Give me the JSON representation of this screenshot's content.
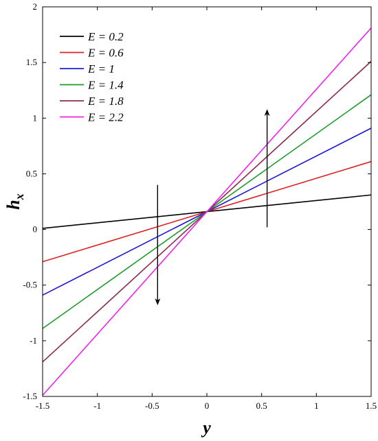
{
  "chart_data": {
    "type": "line",
    "xlabel": "y",
    "ylabel": {
      "main": "h",
      "sub": "x"
    },
    "xlim": [
      -1.5,
      1.5
    ],
    "ylim": [
      -1.5,
      2
    ],
    "xticks": [
      -1.5,
      -1,
      -0.5,
      0,
      0.5,
      1,
      1.5
    ],
    "yticks": [
      -1.5,
      -1,
      -0.5,
      0,
      0.5,
      1,
      1.5,
      2
    ],
    "xtick_labels": [
      "-1.5",
      "-1",
      "-0.5",
      "0",
      "0.5",
      "1",
      "1.5"
    ],
    "ytick_labels": [
      "-1.5",
      "-1",
      "-0.5",
      "0",
      "0.5",
      "1",
      "1.5",
      "2"
    ],
    "grid": false,
    "legend_position": "top-left",
    "series": [
      {
        "name": "E = 0.2",
        "color": "#000000",
        "x": [
          -1.5,
          0,
          1.5
        ],
        "y": [
          0.01,
          0.16,
          0.31
        ]
      },
      {
        "name": "E = 0.6",
        "color": "#e02020",
        "x": [
          -1.5,
          0,
          1.5
        ],
        "y": [
          -0.29,
          0.16,
          0.61
        ]
      },
      {
        "name": "E = 1",
        "color": "#1a1ad8",
        "x": [
          -1.5,
          0,
          1.5
        ],
        "y": [
          -0.59,
          0.16,
          0.91
        ]
      },
      {
        "name": "E = 1.4",
        "color": "#1c9a2a",
        "x": [
          -1.5,
          0,
          1.5
        ],
        "y": [
          -0.89,
          0.16,
          1.21
        ]
      },
      {
        "name": "E = 1.8",
        "color": "#8b2a4a",
        "x": [
          -1.5,
          0,
          1.5
        ],
        "y": [
          -1.19,
          0.16,
          1.51
        ]
      },
      {
        "name": "E = 2.2",
        "color": "#f020f0",
        "x": [
          -1.5,
          0,
          1.5
        ],
        "y": [
          -1.49,
          0.16,
          1.81
        ]
      }
    ],
    "annotations": [
      {
        "type": "arrow",
        "direction": "down",
        "x": -0.45,
        "y_from": 0.4,
        "y_to": -0.65
      },
      {
        "type": "arrow",
        "direction": "up",
        "x": 0.55,
        "y_from": 0.02,
        "y_to": 1.05
      }
    ]
  }
}
